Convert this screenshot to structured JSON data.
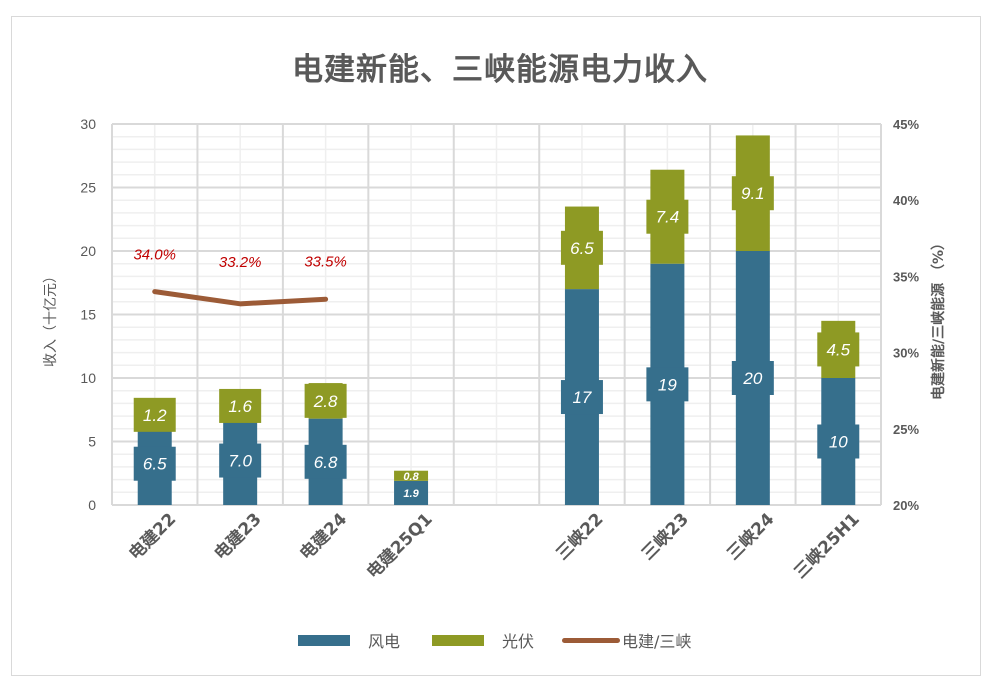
{
  "chart_data": {
    "type": "bar",
    "title": "电建新能、三峡能源电力收入",
    "categories": [
      "电建22",
      "电建23",
      "电建24",
      "电建25Q1",
      "",
      "三峡22",
      "三峡23",
      "三峡24",
      "三峡25H1"
    ],
    "series": [
      {
        "name": "风电",
        "type": "stacked_bar",
        "axis": "left",
        "color": "#366f8c",
        "values": [
          6.5,
          7.0,
          6.8,
          1.9,
          null,
          17,
          19,
          20,
          10
        ],
        "labels": [
          "6.5",
          "7.0",
          "6.8",
          "1.9",
          "",
          "17",
          "19",
          "20",
          "10"
        ]
      },
      {
        "name": "光伏",
        "type": "stacked_bar",
        "axis": "left",
        "color": "#8e9a24",
        "values": [
          1.2,
          1.6,
          2.8,
          0.8,
          null,
          6.5,
          7.4,
          9.1,
          4.5
        ],
        "labels": [
          "1.2",
          "1.6",
          "2.8",
          "0.8",
          "",
          "6.5",
          "7.4",
          "9.1",
          "4.5"
        ]
      },
      {
        "name": "电建/三峡",
        "type": "line",
        "axis": "right",
        "color": "#9c5b37",
        "values": [
          34.0,
          33.2,
          33.5,
          null,
          null,
          null,
          null,
          null,
          null
        ],
        "labels": [
          "34.0%",
          "33.2%",
          "33.5%",
          "",
          "",
          "",
          "",
          "",
          ""
        ]
      }
    ],
    "ylabel": "收入（十亿元）",
    "ylabel_right": "电建新能/三峡能源 （%）",
    "ylim": [
      0,
      30
    ],
    "yticks": [
      "0",
      "5",
      "10",
      "15",
      "20",
      "25",
      "30"
    ],
    "ylim_right": [
      20,
      45
    ],
    "yticks_right": [
      "20%",
      "25%",
      "30%",
      "35%",
      "40%",
      "45%"
    ],
    "grid": true,
    "legend_position": "bottom"
  },
  "legend": {
    "items": [
      {
        "label": "风电",
        "color": "#366f8c"
      },
      {
        "label": "光伏",
        "color": "#8e9a24"
      },
      {
        "label": "电建/三峡",
        "color": "#9c5b37"
      }
    ]
  }
}
